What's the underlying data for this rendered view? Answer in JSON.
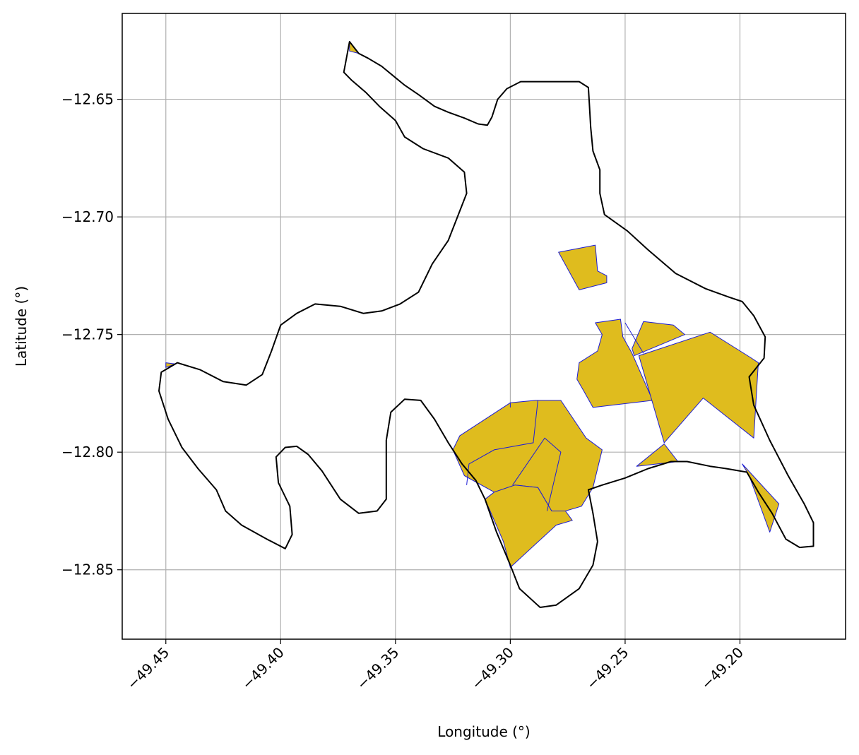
{
  "map": {
    "xlabel": "Longitude (°)",
    "ylabel": "Latitude (°)",
    "xlim": [
      -49.469,
      -49.154
    ],
    "ylim": [
      -12.8795,
      -12.6135
    ],
    "grid": true,
    "xticks": [
      {
        "value": -49.45,
        "label": "−49.45"
      },
      {
        "value": -49.4,
        "label": "−49.40"
      },
      {
        "value": -49.35,
        "label": "−49.35"
      },
      {
        "value": -49.3,
        "label": "−49.30"
      },
      {
        "value": -49.25,
        "label": "−49.25"
      },
      {
        "value": -49.2,
        "label": "−49.20"
      }
    ],
    "yticks": [
      {
        "value": -12.65,
        "label": "−12.65"
      },
      {
        "value": -12.7,
        "label": "−12.70"
      },
      {
        "value": -12.75,
        "label": "−12.75"
      },
      {
        "value": -12.8,
        "label": "−12.80"
      },
      {
        "value": -12.85,
        "label": "−12.85"
      }
    ],
    "colors": {
      "boundary": "#000000",
      "parcel_fill": "#dfbc1e",
      "parcel_edge": "#1c1cd6",
      "grid": "#b0b0b0",
      "frame": "#000000"
    },
    "boundary": [
      [
        -49.3725,
        -12.6385
      ],
      [
        -49.37,
        -12.6255
      ],
      [
        -49.366,
        -12.6305
      ],
      [
        -49.362,
        -12.6325
      ],
      [
        -49.356,
        -12.636
      ],
      [
        -49.351,
        -12.64
      ],
      [
        -49.346,
        -12.644
      ],
      [
        -49.34,
        -12.648
      ],
      [
        -49.333,
        -12.653
      ],
      [
        -49.327,
        -12.6555
      ],
      [
        -49.32,
        -12.658
      ],
      [
        -49.314,
        -12.6605
      ],
      [
        -49.31,
        -12.661
      ],
      [
        -49.308,
        -12.6575
      ],
      [
        -49.3055,
        -12.65
      ],
      [
        -49.3015,
        -12.6455
      ],
      [
        -49.2955,
        -12.6425
      ],
      [
        -49.288,
        -12.6425
      ],
      [
        -49.279,
        -12.6425
      ],
      [
        -49.27,
        -12.6425
      ],
      [
        -49.266,
        -12.645
      ],
      [
        -49.2655,
        -12.653
      ],
      [
        -49.265,
        -12.662
      ],
      [
        -49.264,
        -12.672
      ],
      [
        -49.261,
        -12.68
      ],
      [
        -49.261,
        -12.69
      ],
      [
        -49.259,
        -12.699
      ],
      [
        -49.249,
        -12.706
      ],
      [
        -49.24,
        -12.714
      ],
      [
        -49.228,
        -12.724
      ],
      [
        -49.215,
        -12.7305
      ],
      [
        -49.205,
        -12.734
      ],
      [
        -49.199,
        -12.736
      ],
      [
        -49.194,
        -12.742
      ],
      [
        -49.189,
        -12.751
      ],
      [
        -49.1895,
        -12.76
      ],
      [
        -49.196,
        -12.768
      ],
      [
        -49.194,
        -12.78
      ],
      [
        -49.187,
        -12.795
      ],
      [
        -49.179,
        -12.81
      ],
      [
        -49.172,
        -12.822
      ],
      [
        -49.168,
        -12.83
      ],
      [
        -49.168,
        -12.84
      ],
      [
        -49.174,
        -12.8405
      ],
      [
        -49.18,
        -12.837
      ],
      [
        -49.186,
        -12.826
      ],
      [
        -49.192,
        -12.817
      ],
      [
        -49.197,
        -12.8085
      ],
      [
        -49.206,
        -12.807
      ],
      [
        -49.213,
        -12.806
      ],
      [
        -49.223,
        -12.804
      ],
      [
        -49.23,
        -12.804
      ],
      [
        -49.24,
        -12.807
      ],
      [
        -49.25,
        -12.811
      ],
      [
        -49.26,
        -12.814
      ],
      [
        -49.266,
        -12.816
      ],
      [
        -49.264,
        -12.826
      ],
      [
        -49.262,
        -12.838
      ],
      [
        -49.264,
        -12.848
      ],
      [
        -49.27,
        -12.858
      ],
      [
        -49.28,
        -12.865
      ],
      [
        -49.287,
        -12.866
      ],
      [
        -49.296,
        -12.858
      ],
      [
        -49.3,
        -12.848
      ],
      [
        -49.306,
        -12.834
      ],
      [
        -49.311,
        -12.82
      ],
      [
        -49.315,
        -12.812
      ],
      [
        -49.321,
        -12.805
      ],
      [
        -49.327,
        -12.796
      ],
      [
        -49.333,
        -12.786
      ],
      [
        -49.339,
        -12.778
      ],
      [
        -49.346,
        -12.7775
      ],
      [
        -49.352,
        -12.783
      ],
      [
        -49.354,
        -12.795
      ],
      [
        -49.354,
        -12.808
      ],
      [
        -49.354,
        -12.82
      ],
      [
        -49.358,
        -12.825
      ],
      [
        -49.366,
        -12.826
      ],
      [
        -49.374,
        -12.82
      ],
      [
        -49.382,
        -12.808
      ],
      [
        -49.388,
        -12.801
      ],
      [
        -49.393,
        -12.7975
      ],
      [
        -49.398,
        -12.798
      ],
      [
        -49.402,
        -12.802
      ],
      [
        -49.401,
        -12.813
      ],
      [
        -49.396,
        -12.823
      ],
      [
        -49.395,
        -12.835
      ],
      [
        -49.398,
        -12.841
      ],
      [
        -49.406,
        -12.837
      ],
      [
        -49.417,
        -12.831
      ],
      [
        -49.424,
        -12.825
      ],
      [
        -49.428,
        -12.816
      ],
      [
        -49.436,
        -12.807
      ],
      [
        -49.443,
        -12.798
      ],
      [
        -49.449,
        -12.786
      ],
      [
        -49.453,
        -12.774
      ],
      [
        -49.452,
        -12.766
      ],
      [
        -49.445,
        -12.762
      ],
      [
        -49.435,
        -12.765
      ],
      [
        -49.425,
        -12.77
      ],
      [
        -49.415,
        -12.7715
      ],
      [
        -49.408,
        -12.767
      ],
      [
        -49.404,
        -12.757
      ],
      [
        -49.4,
        -12.746
      ],
      [
        -49.393,
        -12.741
      ],
      [
        -49.385,
        -12.737
      ],
      [
        -49.374,
        -12.738
      ],
      [
        -49.364,
        -12.741
      ],
      [
        -49.356,
        -12.74
      ],
      [
        -49.348,
        -12.737
      ],
      [
        -49.34,
        -12.732
      ],
      [
        -49.334,
        -12.72
      ],
      [
        -49.327,
        -12.71
      ],
      [
        -49.323,
        -12.7
      ],
      [
        -49.319,
        -12.69
      ],
      [
        -49.32,
        -12.681
      ],
      [
        -49.327,
        -12.675
      ],
      [
        -49.338,
        -12.671
      ],
      [
        -49.346,
        -12.666
      ],
      [
        -49.35,
        -12.659
      ],
      [
        -49.357,
        -12.653
      ],
      [
        -49.363,
        -12.647
      ],
      [
        -49.369,
        -12.642
      ],
      [
        -49.3725,
        -12.6385
      ]
    ],
    "parcels": [
      [
        [
          -49.37,
          -12.6255
        ],
        [
          -49.366,
          -12.6305
        ],
        [
          -49.37,
          -12.6295
        ]
      ],
      [
        [
          -49.45,
          -12.764
        ],
        [
          -49.446,
          -12.7625
        ],
        [
          -49.45,
          -12.762
        ]
      ],
      [
        [
          -49.279,
          -12.715
        ],
        [
          -49.263,
          -12.712
        ],
        [
          -49.262,
          -12.723
        ],
        [
          -49.258,
          -12.725
        ],
        [
          -49.258,
          -12.728
        ],
        [
          -49.27,
          -12.731
        ]
      ],
      [
        [
          -49.263,
          -12.745
        ],
        [
          -49.252,
          -12.7435
        ],
        [
          -49.251,
          -12.751
        ],
        [
          -49.247,
          -12.758
        ],
        [
          -49.238,
          -12.778
        ],
        [
          -49.264,
          -12.781
        ],
        [
          -49.268,
          -12.774
        ],
        [
          -49.271,
          -12.769
        ],
        [
          -49.27,
          -12.762
        ],
        [
          -49.262,
          -12.757
        ],
        [
          -49.26,
          -12.75
        ]
      ],
      [
        [
          -49.242,
          -12.7445
        ],
        [
          -49.229,
          -12.746
        ],
        [
          -49.224,
          -12.75
        ],
        [
          -49.246,
          -12.759
        ],
        [
          -49.247,
          -12.756
        ]
      ],
      [
        [
          -49.244,
          -12.759
        ],
        [
          -49.213,
          -12.749
        ],
        [
          -49.195,
          -12.76
        ],
        [
          -49.192,
          -12.762
        ],
        [
          -49.194,
          -12.794
        ],
        [
          -49.216,
          -12.777
        ],
        [
          -49.233,
          -12.796
        ]
      ],
      [
        [
          -49.3,
          -12.779
        ],
        [
          -49.289,
          -12.778
        ],
        [
          -49.278,
          -12.778
        ],
        [
          -49.267,
          -12.794
        ],
        [
          -49.26,
          -12.799
        ],
        [
          -49.264,
          -12.815
        ],
        [
          -49.269,
          -12.823
        ],
        [
          -49.276,
          -12.825
        ],
        [
          -49.282,
          -12.825
        ],
        [
          -49.288,
          -12.815
        ],
        [
          -49.298,
          -12.814
        ],
        [
          -49.307,
          -12.817
        ],
        [
          -49.32,
          -12.81
        ],
        [
          -49.325,
          -12.799
        ],
        [
          -49.322,
          -12.793
        ]
      ],
      [
        [
          -49.307,
          -12.817
        ],
        [
          -49.298,
          -12.814
        ],
        [
          -49.288,
          -12.815
        ],
        [
          -49.282,
          -12.825
        ],
        [
          -49.276,
          -12.825
        ],
        [
          -49.273,
          -12.829
        ],
        [
          -49.28,
          -12.831
        ],
        [
          -49.29,
          -12.84
        ],
        [
          -49.3,
          -12.849
        ],
        [
          -49.303,
          -12.838
        ],
        [
          -49.311,
          -12.82
        ]
      ],
      [
        [
          -49.233,
          -12.7965
        ],
        [
          -49.245,
          -12.806
        ],
        [
          -49.227,
          -12.804
        ]
      ],
      [
        [
          -49.199,
          -12.805
        ],
        [
          -49.183,
          -12.822
        ],
        [
          -49.187,
          -12.834
        ],
        [
          -49.196,
          -12.81
        ]
      ]
    ],
    "parcel_edges": [
      [
        [
          -49.319,
          -12.814
        ],
        [
          -49.318,
          -12.805
        ],
        [
          -49.307,
          -12.799
        ],
        [
          -49.29,
          -12.796
        ],
        [
          -49.288,
          -12.778
        ]
      ],
      [
        [
          -49.3,
          -12.779
        ],
        [
          -49.3,
          -12.781
        ]
      ],
      [
        [
          -49.299,
          -12.814
        ],
        [
          -49.285,
          -12.794
        ],
        [
          -49.278,
          -12.8
        ],
        [
          -49.284,
          -12.825
        ]
      ],
      [
        [
          -49.242,
          -12.758
        ],
        [
          -49.25,
          -12.745
        ]
      ]
    ]
  }
}
